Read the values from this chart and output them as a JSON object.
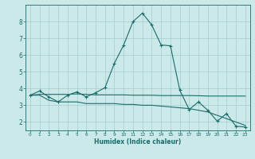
{
  "background_color": "#cce9e9",
  "grid_color": "#aad0d0",
  "line_color": "#1a6b6b",
  "xlabel": "Humidex (Indice chaleur)",
  "xlim": [
    -0.5,
    23.5
  ],
  "ylim": [
    1.5,
    9.0
  ],
  "yticks": [
    2,
    3,
    4,
    5,
    6,
    7,
    8
  ],
  "xticks": [
    0,
    1,
    2,
    3,
    4,
    5,
    6,
    7,
    8,
    9,
    10,
    11,
    12,
    13,
    14,
    15,
    16,
    17,
    18,
    19,
    20,
    21,
    22,
    23
  ],
  "line1_x": [
    0,
    1,
    2,
    3,
    4,
    5,
    6,
    7,
    8,
    9,
    10,
    11,
    12,
    13,
    14,
    15,
    16,
    17,
    18,
    19,
    20,
    21,
    22,
    23
  ],
  "line1_y": [
    3.6,
    3.85,
    3.5,
    3.2,
    3.6,
    3.8,
    3.5,
    3.75,
    4.05,
    5.5,
    6.6,
    8.0,
    8.5,
    7.8,
    6.6,
    6.55,
    3.9,
    2.75,
    3.2,
    2.7,
    2.05,
    2.5,
    1.75,
    1.7
  ],
  "line2_x": [
    0,
    1,
    2,
    3,
    4,
    5,
    6,
    7,
    8,
    9,
    10,
    11,
    12,
    13,
    14,
    15,
    16,
    17,
    18,
    19,
    20,
    21,
    22,
    23
  ],
  "line2_y": [
    3.6,
    3.6,
    3.3,
    3.2,
    3.2,
    3.2,
    3.1,
    3.1,
    3.1,
    3.1,
    3.05,
    3.05,
    3.0,
    3.0,
    2.95,
    2.9,
    2.85,
    2.8,
    2.7,
    2.6,
    2.4,
    2.2,
    2.0,
    1.8
  ],
  "line3_x": [
    0,
    1,
    2,
    3,
    4,
    5,
    6,
    7,
    8,
    9,
    10,
    11,
    12,
    13,
    14,
    15,
    16,
    17,
    18,
    19,
    20,
    21,
    22,
    23
  ],
  "line3_y": [
    3.6,
    3.65,
    3.65,
    3.65,
    3.65,
    3.68,
    3.65,
    3.62,
    3.62,
    3.62,
    3.62,
    3.6,
    3.6,
    3.6,
    3.58,
    3.58,
    3.58,
    3.58,
    3.57,
    3.55,
    3.55,
    3.55,
    3.55,
    3.55
  ]
}
